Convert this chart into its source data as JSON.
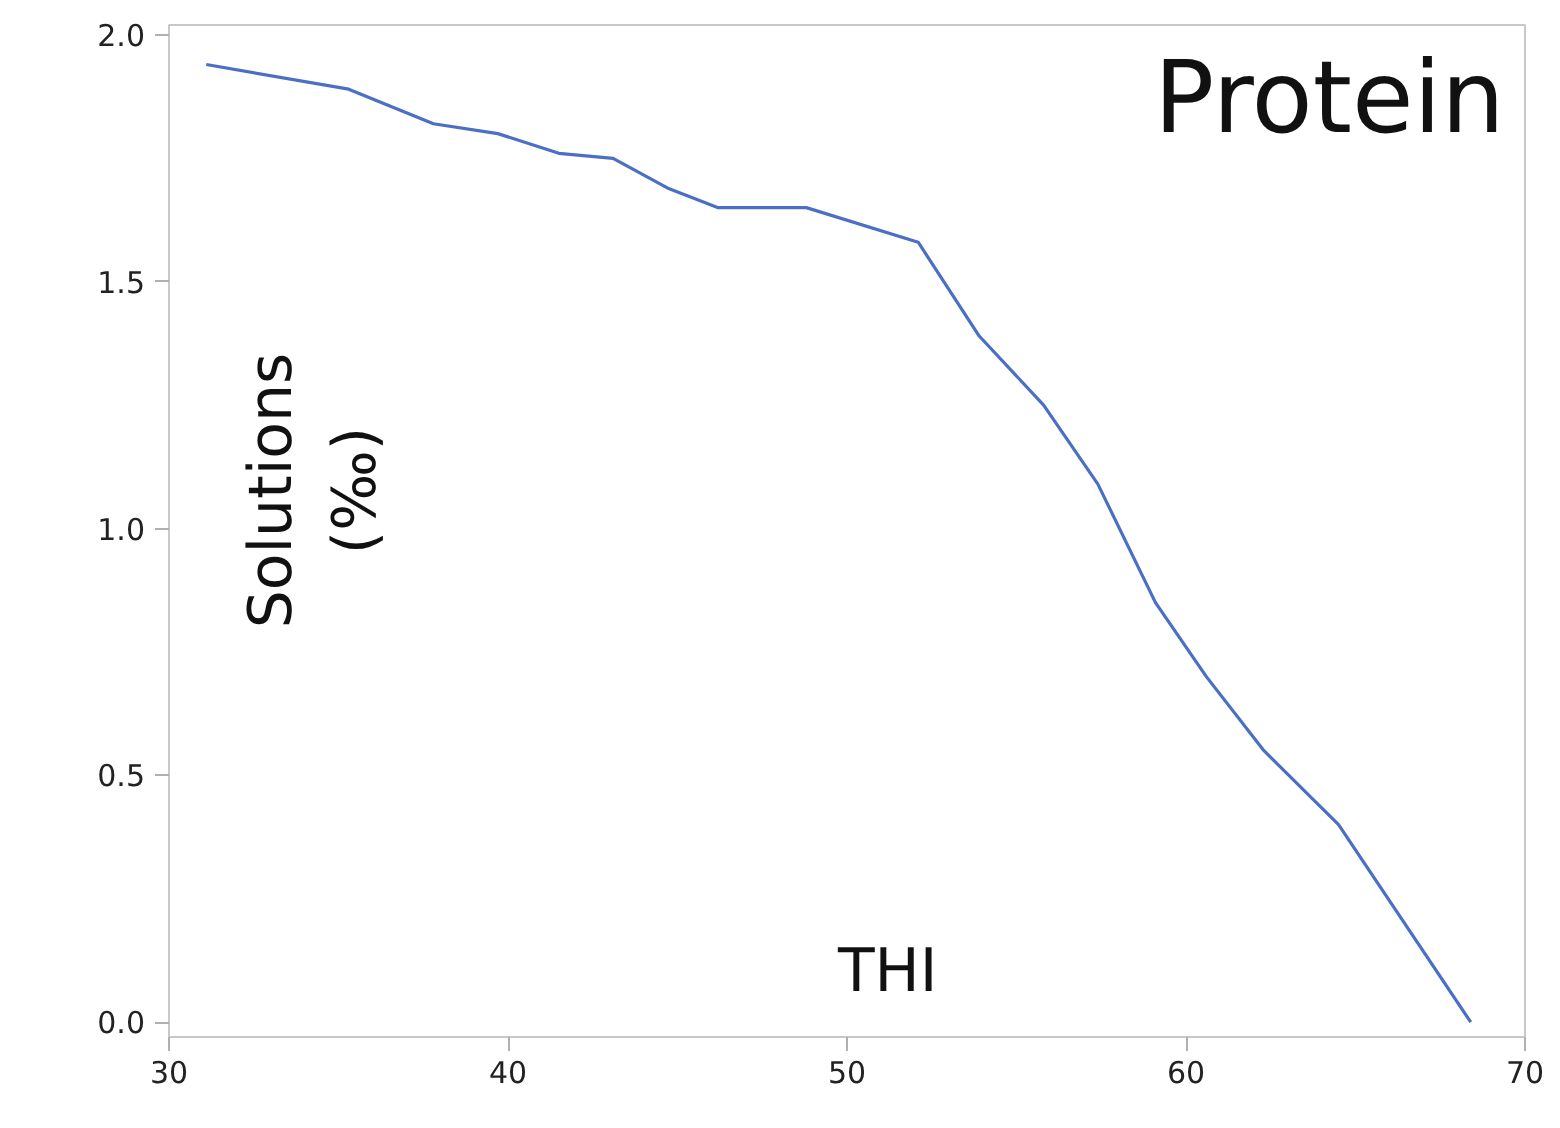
{
  "chart_data": {
    "type": "line",
    "title": "Protein",
    "xlabel": "THI",
    "ylabel": "Solutions\n(‰)",
    "x": [
      31.1,
      35.3,
      37.8,
      39.7,
      41.5,
      43.1,
      44.7,
      46.2,
      48.8,
      52.1,
      53.9,
      55.8,
      57.4,
      59.1,
      60.6,
      62.3,
      64.5,
      68.4
    ],
    "series": [
      {
        "color": "#4a6fc4",
        "values": [
          1.94,
          1.89,
          1.82,
          1.8,
          1.76,
          1.75,
          1.69,
          1.65,
          1.65,
          1.58,
          1.39,
          1.25,
          1.09,
          0.85,
          0.7,
          0.55,
          0.4,
          0.0
        ]
      }
    ],
    "xlim": [
      30,
      70
    ],
    "ylim": [
      -0.03,
      2.02
    ],
    "xticks": [
      30,
      40,
      50,
      60,
      70
    ],
    "yticks": [
      {
        "value": 0,
        "label": "0.0"
      },
      {
        "value": 0.5,
        "label": "0.5"
      },
      {
        "value": 1,
        "label": "1.0"
      },
      {
        "value": 1.5,
        "label": "1.5"
      },
      {
        "value": 2,
        "label": "2.0"
      }
    ],
    "grid": false,
    "marker": "none",
    "line_style": "solid"
  }
}
